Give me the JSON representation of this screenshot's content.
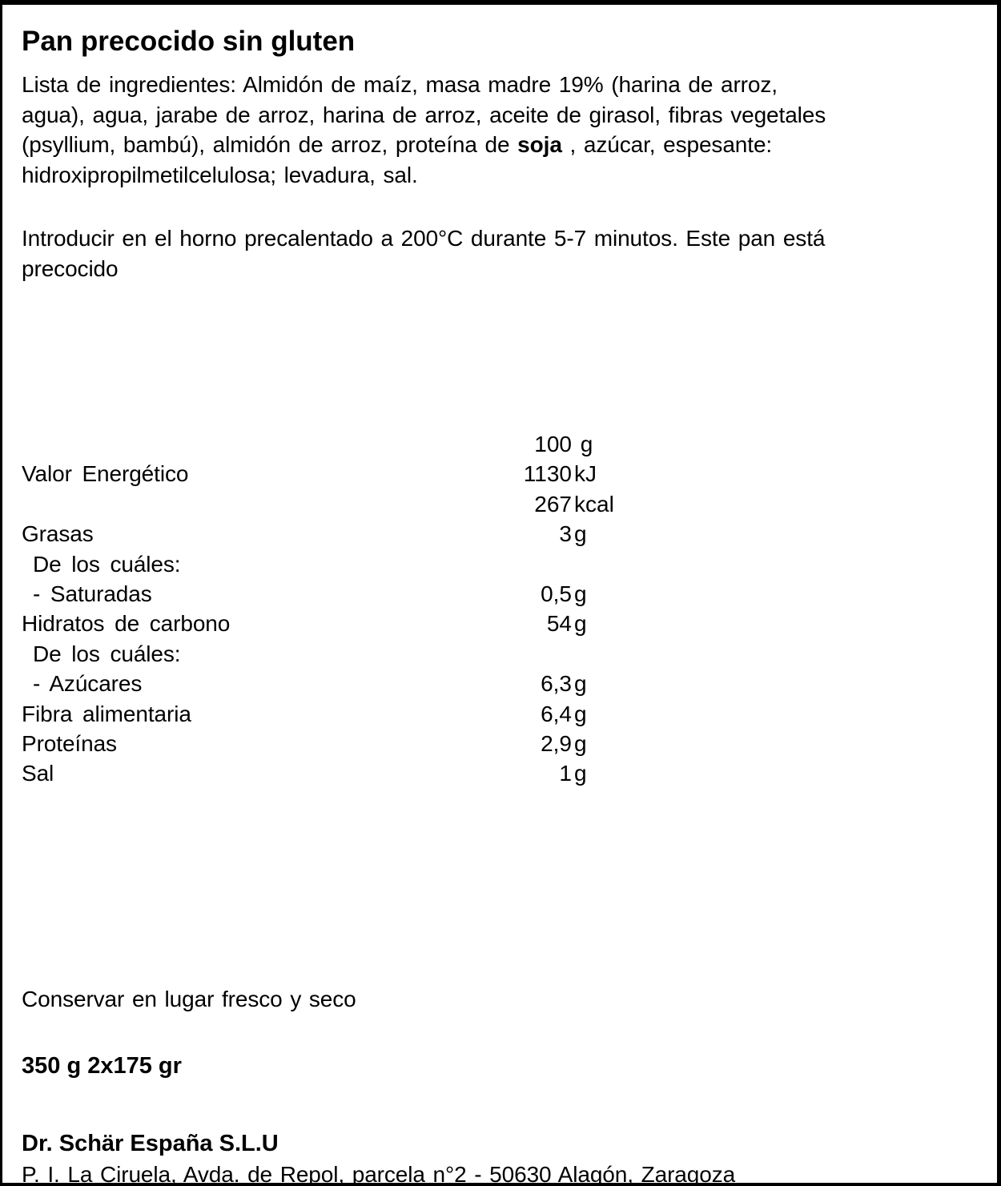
{
  "title": "Pan precocido sin gluten",
  "ingredients": {
    "prefix": "Lista de ingredientes: Almidón de maíz, masa madre 19% (harina de arroz,\nagua), agua, jarabe de arroz, harina de arroz, aceite de girasol, fibras vegetales\n(psyllium, bambú), almidón de arroz, proteína de ",
    "allergen": "soja",
    "suffix": " , azúcar, espesante:\nhidroxipropilmetilcelulosa; levadura, sal."
  },
  "instructions": "Introducir en el horno precalentado a 200°C durante 5-7 minutos. Este pan está\nprecocido",
  "nutrition": {
    "column_header": "100 g",
    "rows": [
      {
        "label": "",
        "num": "100",
        "unit": " g"
      },
      {
        "label": "Valor Energético",
        "num": "1130",
        "unit": "kJ"
      },
      {
        "label": "",
        "num": "267",
        "unit": "kcal"
      },
      {
        "label": "Grasas",
        "num": "3",
        "unit": "g"
      },
      {
        "label": "De los cuáles:",
        "num": "",
        "unit": ""
      },
      {
        "label": "- Saturadas",
        "num": "0,5",
        "unit": "g"
      },
      {
        "label": "Hidratos de carbono",
        "num": "54",
        "unit": "g"
      },
      {
        "label": "De los cuáles:",
        "num": "",
        "unit": ""
      },
      {
        "label": "- Azúcares",
        "num": "6,3",
        "unit": "g"
      },
      {
        "label": "Fibra alimentaria",
        "num": "6,4",
        "unit": "g"
      },
      {
        "label": "Proteínas",
        "num": "2,9",
        "unit": "g"
      },
      {
        "label": "Sal",
        "num": "1",
        "unit": "g"
      }
    ]
  },
  "storage": "Conservar en lugar fresco y seco",
  "net_weight": "350 g 2x175 gr",
  "manufacturer": {
    "name": "Dr. Schär España S.L.U",
    "address": "P. I. La Ciruela, Avda. de Repol, parcela n°2 - 50630 Alagón, Zaragoza"
  },
  "colors": {
    "text": "#000000",
    "background": "#ffffff",
    "border": "#000000"
  }
}
